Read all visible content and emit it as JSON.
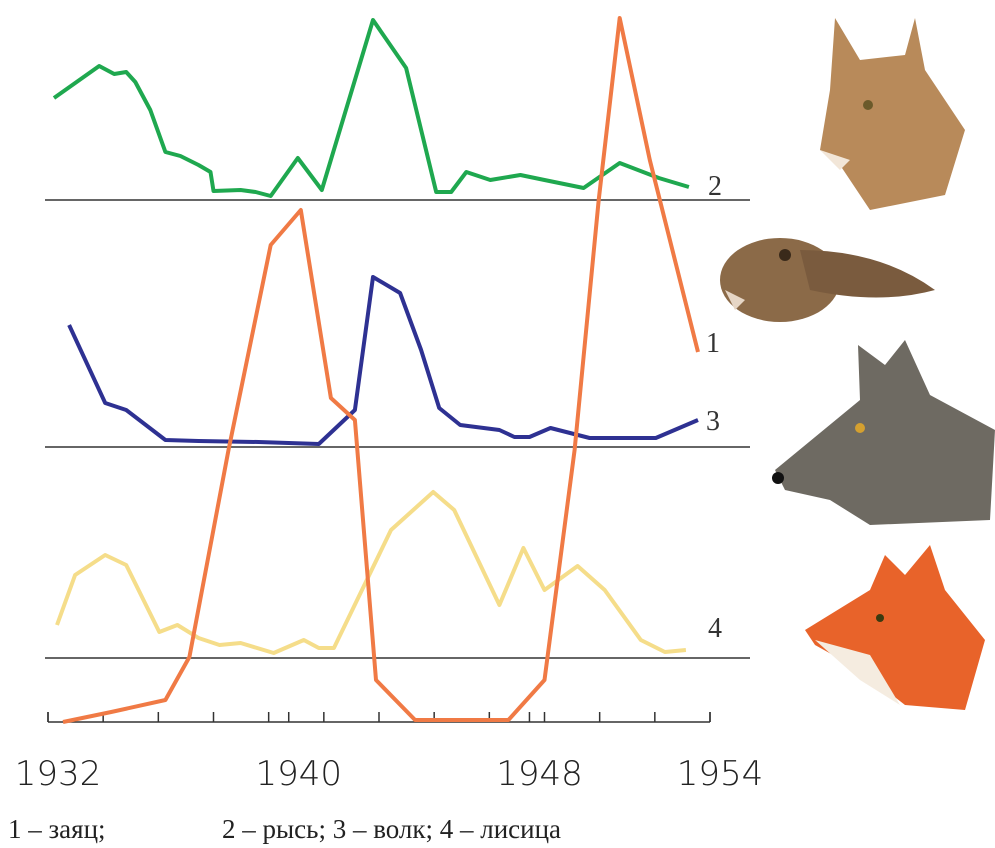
{
  "chart_data": {
    "type": "line",
    "xlim": [
      1932,
      1954
    ],
    "xticks": [
      1932,
      1940,
      1948,
      1954
    ],
    "series": [
      {
        "name": "1",
        "color": "#f07a45",
        "x": [
          1932.5,
          1934.1,
          1935.9,
          1936.7,
          1938.0,
          1939.4,
          1940.4,
          1941.4,
          1942.2,
          1942.9,
          1944.2,
          1947.3,
          1948.5,
          1949.5,
          1950.3,
          1951.0,
          1952.0,
          1953.6
        ],
        "values": [
          0,
          1.0,
          2.2,
          6.5,
          27.2,
          47.7,
          51.2,
          32.4,
          30.2,
          4.2,
          0.2,
          0.2,
          4.2,
          27.2,
          52.2,
          70.4,
          56.2,
          37.0
        ]
      },
      {
        "name": "2",
        "color": "#1fa84f",
        "x": [
          1932.2,
          1933.7,
          1934.2,
          1934.6,
          1934.9,
          1935.4,
          1935.9,
          1936.4,
          1937.0,
          1937.4,
          1937.5,
          1938.4,
          1938.9,
          1939.4,
          1940.3,
          1941.1,
          1942.8,
          1943.9,
          1944.9,
          1945.4,
          1945.9,
          1946.7,
          1947.7,
          1948.5,
          1949.8,
          1951.0,
          1952.3,
          1953.3
        ],
        "values": [
          10.2,
          13.4,
          12.6,
          12.8,
          11.8,
          9.0,
          4.8,
          4.4,
          3.5,
          2.8,
          0.9,
          1.0,
          0.8,
          0.4,
          4.2,
          1.0,
          18.0,
          13.2,
          0.8,
          0.8,
          2.8,
          2.0,
          2.5,
          2.0,
          1.2,
          3.7,
          2.2,
          1.3
        ]
      },
      {
        "name": "3",
        "color": "#2e3192",
        "x": [
          1932.7,
          1933.9,
          1934.6,
          1935.9,
          1937.0,
          1939.0,
          1941.0,
          1942.2,
          1942.8,
          1943.7,
          1944.4,
          1945.0,
          1945.7,
          1947.0,
          1947.5,
          1948.0,
          1948.7,
          1950.0,
          1952.2,
          1953.6
        ],
        "values": [
          12.2,
          4.4,
          3.7,
          0.7,
          0.6,
          0.5,
          0.3,
          3.7,
          17.0,
          15.4,
          9.7,
          3.9,
          2.2,
          1.7,
          1.0,
          1.0,
          1.9,
          0.9,
          0.9,
          2.7
        ]
      },
      {
        "name": "4",
        "color": "#f5dd8a",
        "x": [
          1932.3,
          1932.9,
          1933.9,
          1934.6,
          1935.7,
          1936.3,
          1937.0,
          1937.7,
          1938.4,
          1939.5,
          1940.5,
          1941.0,
          1941.5,
          1943.4,
          1944.8,
          1945.5,
          1947.0,
          1947.8,
          1948.5,
          1949.6,
          1950.5,
          1951.7,
          1952.5,
          1953.2
        ],
        "values": [
          3.3,
          8.3,
          10.3,
          9.3,
          2.6,
          3.3,
          2.0,
          1.3,
          1.5,
          0.5,
          1.8,
          1.0,
          1.0,
          12.8,
          16.6,
          14.8,
          5.3,
          11.0,
          6.8,
          9.2,
          6.8,
          1.8,
          0.6,
          0.8
        ]
      }
    ],
    "legend": [
      "1 – заяц;",
      "2 – рысь; 3 – волк; 4 – лисица"
    ]
  }
}
